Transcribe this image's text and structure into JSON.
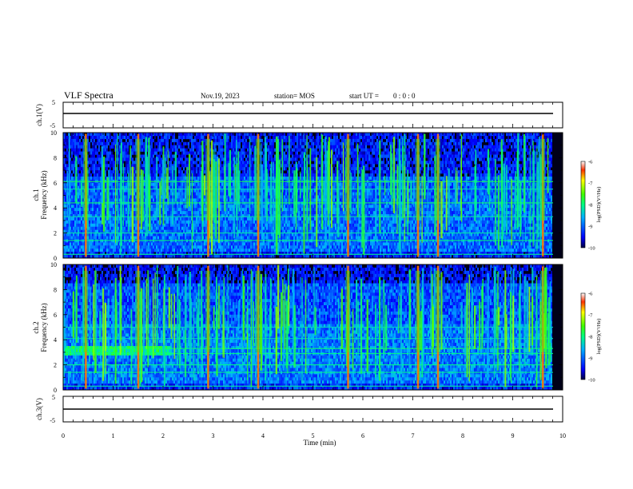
{
  "header": {
    "title": "VLF Spectra",
    "date": "Nov.19, 2023",
    "station": "station= MOS",
    "start_label": "start  UT =",
    "start_time": "0 : 0 : 0"
  },
  "chart_data": [
    {
      "type": "line",
      "name": "ch1-waveform",
      "ylabel": "ch.1(V)",
      "ylim": [
        -5,
        5
      ],
      "yticks": [
        "5",
        "-5"
      ],
      "xlim": [
        0,
        10
      ],
      "values": {
        "x": [
          0,
          10
        ],
        "y": [
          0,
          0
        ]
      }
    },
    {
      "type": "heatmap",
      "name": "ch1-spectrogram",
      "ylabel": "Frequency (kHz)",
      "channel_label": "ch.1",
      "ylim": [
        0,
        10
      ],
      "yticks": [
        "0",
        "2",
        "4",
        "6",
        "8",
        "10"
      ],
      "xlim": [
        0,
        10
      ],
      "colorbar": {
        "label": "log(PSD)(V²/Hz)",
        "ticks": [
          "-6",
          "-7",
          "-8",
          "-9",
          "-10"
        ],
        "range": [
          -10,
          -6
        ]
      },
      "strong_bursts_min": [
        0.45,
        1.5,
        2.9,
        3.9,
        5.7,
        7.1,
        7.5,
        9.6
      ],
      "band_lines_khz": [
        0.3,
        1.4,
        2.0,
        3.3,
        4.4,
        5.5,
        6.1
      ]
    },
    {
      "type": "heatmap",
      "name": "ch2-spectrogram",
      "ylabel": "Frequency (kHz)",
      "channel_label": "ch.2",
      "ylim": [
        0,
        10
      ],
      "yticks": [
        "0",
        "2",
        "4",
        "6",
        "8",
        "10"
      ],
      "xlim": [
        0,
        10
      ],
      "colorbar": {
        "label": "log(PSD)(V²/Hz)",
        "ticks": [
          "-6",
          "-7",
          "-8",
          "-9",
          "-10"
        ],
        "range": [
          -10,
          -6
        ]
      },
      "strong_bursts_min": [
        0.45,
        1.5,
        2.9,
        3.9,
        5.7,
        7.1,
        7.5,
        9.6
      ],
      "band_lines_khz": [
        0.3,
        1.4,
        2.0,
        2.9,
        3.3,
        4.1,
        5.0
      ]
    },
    {
      "type": "line",
      "name": "ch3-waveform",
      "ylabel": "ch.3(V)",
      "ylim": [
        -5,
        5
      ],
      "yticks": [
        "5",
        "-5"
      ],
      "xlim": [
        0,
        10
      ],
      "values": {
        "x": [
          0,
          10
        ],
        "y": [
          0,
          0
        ]
      }
    }
  ],
  "xaxis": {
    "label": "Time (min)",
    "ticks": [
      "0",
      "1",
      "2",
      "3",
      "4",
      "5",
      "6",
      "7",
      "8",
      "9",
      "10"
    ]
  }
}
